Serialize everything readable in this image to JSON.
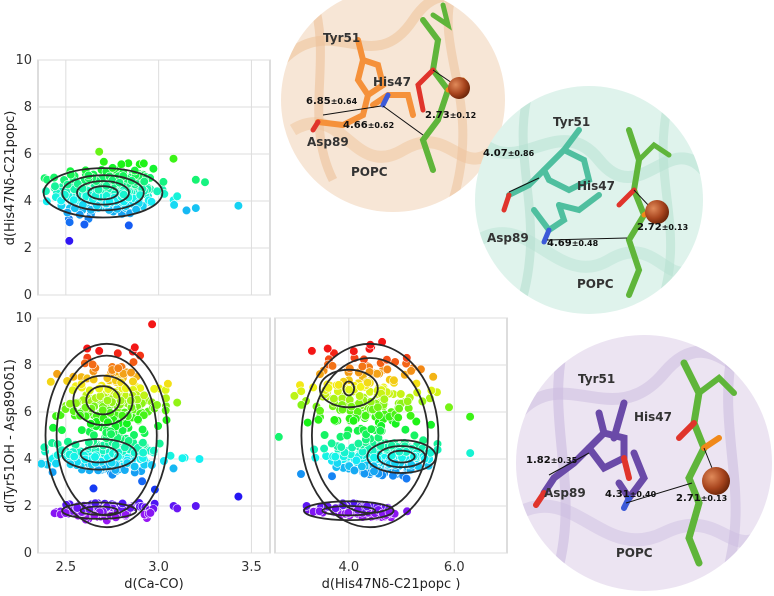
{
  "chart_data": [
    {
      "type": "scatter",
      "panel": "top-left",
      "ylabel": "d(His47Nδ-C21popc)",
      "xlim": [
        2.35,
        3.6
      ],
      "ylim": [
        0,
        10
      ],
      "xticks": [
        "2.5",
        "3.0",
        "3.5"
      ],
      "yticks": [
        "0",
        "2",
        "4",
        "6",
        "8",
        "10"
      ],
      "grid": true,
      "point_color": "rainbow by y",
      "cluster": {
        "x_center": 2.72,
        "y_center": 4.4,
        "x_spread": 0.13,
        "y_spread": 0.5
      },
      "outliers": [
        [
          2.68,
          6.1
        ],
        [
          2.92,
          5.6
        ],
        [
          3.08,
          5.8
        ],
        [
          3.2,
          4.9
        ],
        [
          3.25,
          4.8
        ],
        [
          3.1,
          4.2
        ],
        [
          3.15,
          3.6
        ],
        [
          3.2,
          3.7
        ],
        [
          3.43,
          3.8
        ],
        [
          2.52,
          3.1
        ],
        [
          2.6,
          3.0
        ]
      ],
      "contours": [
        {
          "cx": 2.7,
          "cy": 4.35,
          "rx": 0.32,
          "ry": 1.05
        },
        {
          "cx": 2.7,
          "cy": 4.35,
          "rx": 0.22,
          "ry": 0.75
        },
        {
          "cx": 2.7,
          "cy": 4.35,
          "rx": 0.14,
          "ry": 0.5
        },
        {
          "cx": 2.7,
          "cy": 4.35,
          "rx": 0.08,
          "ry": 0.28
        }
      ]
    },
    {
      "type": "scatter",
      "panel": "bottom-left",
      "xlabel": "d(Ca-CO)",
      "ylabel": "d(Tyr51OH - Asp89Oδ1)",
      "xlim": [
        2.35,
        3.6
      ],
      "ylim": [
        0,
        10
      ],
      "xticks": [
        "2.5",
        "3.0",
        "3.5"
      ],
      "yticks": [
        "0",
        "2",
        "4",
        "6",
        "8",
        "10"
      ],
      "grid": true,
      "point_color": "rainbow by y",
      "clusters": [
        {
          "x_center": 2.72,
          "y_center": 1.8,
          "x_spread": 0.12,
          "y_spread": 0.15,
          "n": 140
        },
        {
          "x_center": 2.72,
          "y_center": 4.1,
          "x_spread": 0.14,
          "y_spread": 0.35,
          "n": 180
        },
        {
          "x_center": 2.75,
          "y_center": 6.3,
          "x_spread": 0.13,
          "y_spread": 1.0,
          "n": 220
        }
      ],
      "outliers": [
        [
          2.68,
          8.6
        ],
        [
          2.78,
          8.5
        ],
        [
          2.9,
          8.4
        ],
        [
          3.05,
          7.2
        ],
        [
          3.1,
          6.4
        ],
        [
          3.08,
          3.6
        ],
        [
          3.22,
          4.0
        ],
        [
          2.98,
          2.7
        ],
        [
          3.43,
          2.4
        ],
        [
          3.1,
          1.9
        ],
        [
          3.2,
          2.0
        ],
        [
          2.5,
          1.7
        ]
      ],
      "contours": [
        {
          "cx": 2.7,
          "cy": 6.5,
          "rx": 0.09,
          "ry": 0.6
        },
        {
          "cx": 2.7,
          "cy": 6.5,
          "rx": 0.16,
          "ry": 1.05
        },
        {
          "cx": 2.68,
          "cy": 4.2,
          "rx": 0.1,
          "ry": 0.35
        },
        {
          "cx": 2.68,
          "cy": 4.2,
          "rx": 0.2,
          "ry": 0.65
        },
        {
          "cx": 2.68,
          "cy": 1.8,
          "rx": 0.1,
          "ry": 0.18
        },
        {
          "cx": 2.68,
          "cy": 1.8,
          "rx": 0.2,
          "ry": 0.35
        },
        {
          "cx": 2.72,
          "cy": 5.0,
          "rx": 0.33,
          "ry": 3.9
        },
        {
          "cx": 2.72,
          "cy": 5.0,
          "rx": 0.27,
          "ry": 3.4
        }
      ]
    },
    {
      "type": "scatter",
      "panel": "bottom-right",
      "xlabel": "d(His47Nδ-C21popc )",
      "xlim": [
        2.6,
        7.0
      ],
      "ylim": [
        0,
        10
      ],
      "xticks": [
        "4.0",
        "6.0"
      ],
      "yticks": [
        "0",
        "2",
        "4",
        "6",
        "8",
        "10"
      ],
      "grid": true,
      "point_color": "rainbow by y",
      "clusters": [
        {
          "x_center": 4.3,
          "y_center": 1.8,
          "x_spread": 0.35,
          "y_spread": 0.15,
          "n": 140
        },
        {
          "x_center": 4.7,
          "y_center": 4.1,
          "x_spread": 0.5,
          "y_spread": 0.35,
          "n": 200
        },
        {
          "x_center": 4.3,
          "y_center": 6.6,
          "x_spread": 0.55,
          "y_spread": 0.9,
          "n": 220
        }
      ],
      "outliers": [
        [
          3.3,
          8.6
        ],
        [
          3.6,
          8.7
        ],
        [
          5.1,
          8.3
        ],
        [
          5.6,
          7.5
        ],
        [
          6.3,
          5.8
        ],
        [
          5.9,
          6.2
        ],
        [
          3.1,
          6.3
        ],
        [
          3.2,
          2.0
        ]
      ],
      "contours": [
        {
          "cx": 4.0,
          "cy": 7.0,
          "rx": 0.1,
          "ry": 0.3
        },
        {
          "cx": 4.0,
          "cy": 7.0,
          "rx": 0.55,
          "ry": 0.8
        },
        {
          "cx": 5.0,
          "cy": 4.1,
          "rx": 0.25,
          "ry": 0.25
        },
        {
          "cx": 5.0,
          "cy": 4.1,
          "rx": 0.45,
          "ry": 0.45
        },
        {
          "cx": 5.0,
          "cy": 4.1,
          "rx": 0.65,
          "ry": 0.7
        },
        {
          "cx": 4.0,
          "cy": 1.8,
          "rx": 0.5,
          "ry": 0.2
        },
        {
          "cx": 4.0,
          "cy": 1.8,
          "rx": 0.85,
          "ry": 0.4
        },
        {
          "cx": 4.4,
          "cy": 5.0,
          "rx": 1.3,
          "ry": 3.9
        },
        {
          "cx": 4.4,
          "cy": 5.0,
          "rx": 1.1,
          "ry": 3.3
        }
      ]
    }
  ],
  "structures": [
    {
      "name": "structure-orange",
      "color": "#f5913a",
      "bg": "#f7e6d6",
      "labels": {
        "tyr": "Tyr51",
        "his": "His47",
        "asp": "Asp89",
        "popc": "POPC"
      },
      "distances": {
        "d1": "6.85",
        "d1_err": "±0.64",
        "d2": "4.66",
        "d2_err": "±0.62",
        "d3": "2.73",
        "d3_err": "±0.12"
      }
    },
    {
      "name": "structure-teal",
      "color": "#4fbf9f",
      "bg": "#dff3ec",
      "labels": {
        "tyr": "Tyr51",
        "his": "His47",
        "asp": "Asp89",
        "popc": "POPC"
      },
      "distances": {
        "d1": "4.07",
        "d1_err": "±0.86",
        "d2": "4.69",
        "d2_err": "±0.48",
        "d3": "2.72",
        "d3_err": "±0.13"
      }
    },
    {
      "name": "structure-purple",
      "color": "#6a4aa8",
      "bg": "#ece4f2",
      "labels": {
        "tyr": "Tyr51",
        "his": "His47",
        "asp": "Asp89",
        "popc": "POPC"
      },
      "distances": {
        "d1": "1.82",
        "d1_err": "±0.35",
        "d2": "4.31",
        "d2_err": "±0.40",
        "d3": "2.71",
        "d3_err": "±0.13"
      }
    }
  ]
}
